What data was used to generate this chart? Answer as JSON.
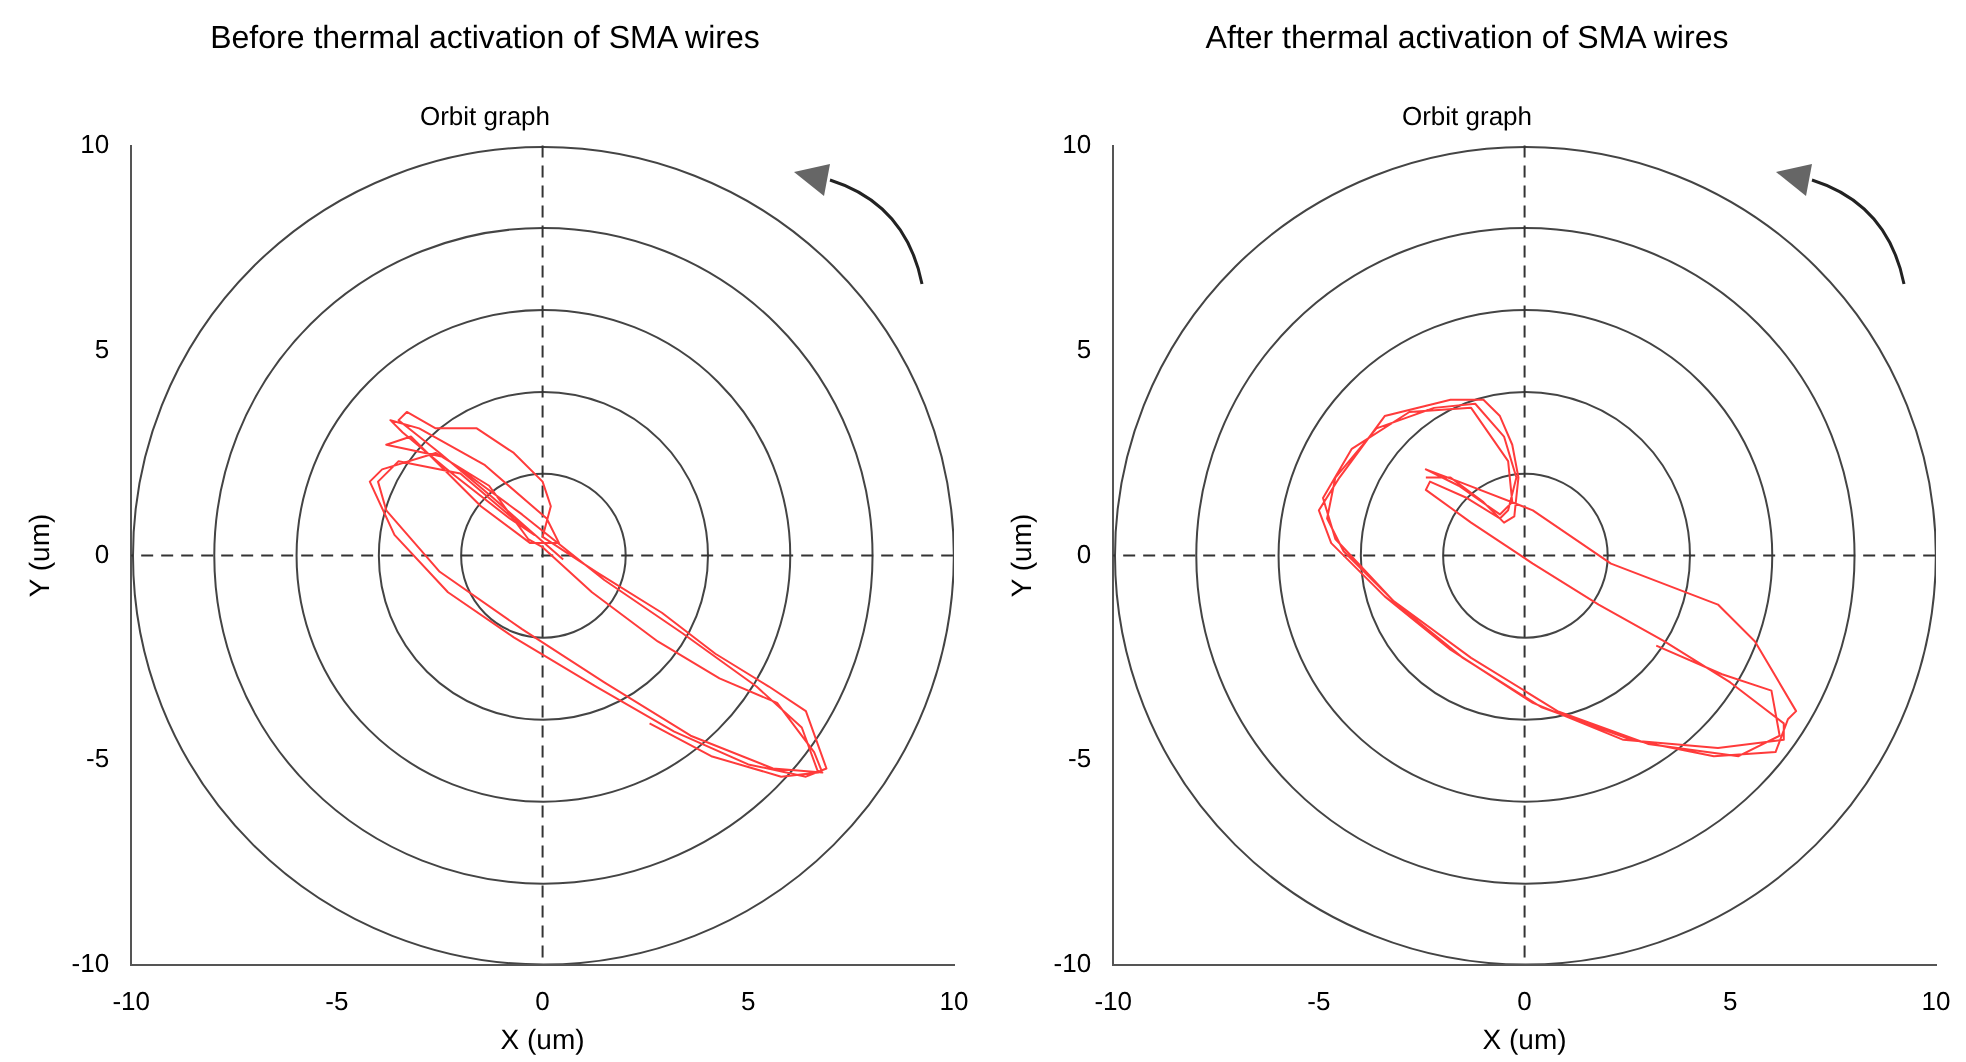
{
  "chart_data": [
    {
      "type": "line",
      "title": "Before thermal activation of SMA wires",
      "subtitle": "Orbit graph",
      "xlabel": "X (um)",
      "ylabel": "Y (um)",
      "xlim": [
        -10,
        10
      ],
      "ylim": [
        -10,
        10
      ],
      "xticks": [
        -10,
        -5,
        0,
        5,
        10
      ],
      "yticks": [
        -10,
        -5,
        0,
        5,
        10
      ],
      "marker": "none",
      "ref_lines": [
        {
          "axis": "x",
          "value": 0,
          "line_style": "dashed"
        },
        {
          "axis": "y",
          "value": 0,
          "line_style": "dashed"
        }
      ],
      "series": [
        {
          "color": "#ff3b3b",
          "x": [
            0.5,
            -0.3,
            -1.2,
            -2.5,
            -3.5,
            -3.3,
            -2.6,
            -1.6,
            -0.7,
            0,
            0.2,
            0,
            1.3,
            2.9,
            4.2,
            5.5,
            6.4,
            6.9,
            6.4,
            5,
            3.2,
            1.3,
            -0.7,
            -2.3,
            -3.6,
            -4.2,
            -3.9,
            -2.6,
            -1.3,
            -0.35,
            0,
            1.2,
            2.8,
            4.3,
            5.7,
            6.6,
            6.8,
            5.6,
            3.6,
            1.5,
            -0.5,
            -2.5,
            -3.8,
            -4,
            -3.5,
            -2,
            -0.6,
            -0.2,
            -0.8,
            -2.2,
            -3.4,
            -3.7,
            -3,
            -1.4,
            0.1,
            0.4,
            -0.3,
            -1.5,
            -3.2,
            -3.8,
            -2.4,
            -0.5,
            1.5,
            3.4,
            5.2,
            6.3,
            6.7,
            5.8,
            4.1,
            2.6
          ],
          "values": [
            -0.1,
            0.6,
            1.4,
            2.5,
            3.3,
            3.5,
            3.1,
            3.1,
            2.5,
            1.8,
            1.2,
            0.45,
            -0.4,
            -1.4,
            -2.4,
            -3.2,
            -3.8,
            -5.2,
            -5.4,
            -5.1,
            -4.3,
            -3.2,
            -2,
            -0.9,
            0.5,
            1.8,
            2.1,
            2.5,
            1.7,
            0.4,
            0.2,
            -0.9,
            -2.1,
            -3,
            -3.6,
            -4.8,
            -5.3,
            -5.2,
            -4.4,
            -3.1,
            -1.8,
            -0.4,
            1.1,
            1.8,
            2.3,
            2,
            0.8,
            0.5,
            0.9,
            2,
            3,
            3.3,
            3.1,
            2.2,
            0.9,
            0.3,
            0.3,
            1.2,
            2.9,
            2.7,
            2.4,
            1,
            -0.6,
            -1.9,
            -3.2,
            -4.2,
            -5.3,
            -5.4,
            -4.9,
            -4.1
          ]
        }
      ]
    },
    {
      "type": "line",
      "title": "After thermal activation of SMA wires",
      "subtitle": "Orbit graph",
      "xlabel": "X (um)",
      "ylabel": "Y (um)",
      "xlim": [
        -10,
        10
      ],
      "ylim": [
        -10,
        10
      ],
      "xticks": [
        -10,
        -5,
        0,
        5,
        10
      ],
      "yticks": [
        -10,
        -5,
        0,
        5,
        10
      ],
      "marker": "none",
      "ref_lines": [
        {
          "axis": "x",
          "value": 0,
          "line_style": "dashed"
        },
        {
          "axis": "y",
          "value": 0,
          "line_style": "dashed"
        }
      ],
      "series": [
        {
          "color": "#ff3b3b",
          "x": [
            -2.4,
            -1.8,
            -1,
            -0.5,
            -0.25,
            -0.15,
            -0.3,
            -0.6,
            -1,
            -1.8,
            -3.4,
            -4.5,
            -5,
            -4.7,
            -3.4,
            -1.8,
            0.2,
            2.4,
            4.7,
            6.3,
            6.3,
            5,
            3.4,
            1.8,
            0.2,
            -1.3,
            -2.4,
            -2.3,
            -1.4,
            -0.6,
            -0.4,
            -0.2,
            -0.5,
            -1.2,
            -2.2,
            -3.6,
            -4.6,
            -4.8,
            -4.4,
            -3.1,
            -1.5,
            0.4,
            2.6,
            4.6,
            6.1,
            6.4,
            6.6,
            5.6,
            4.7,
            2.1,
            0.2,
            -1.6,
            -2.4,
            -1.6,
            -0.6,
            -0.3,
            -0.4,
            -1.3,
            -2.8,
            -4.2,
            -4.9,
            -4.6,
            -3.2,
            -1.3,
            0.8,
            3,
            5.2,
            6.2,
            6,
            4.8,
            3.2
          ],
          "values": [
            1.9,
            1.9,
            1.3,
            0.8,
            0.95,
            1.9,
            2.7,
            3.4,
            3.8,
            3.8,
            3.4,
            1.9,
            1.1,
            0.3,
            -1,
            -2.3,
            -3.6,
            -4.5,
            -4.7,
            -4.5,
            -4.1,
            -3.1,
            -2.1,
            -1.2,
            -0.2,
            0.8,
            1.6,
            1.8,
            1.4,
            0.9,
            1.1,
            1.9,
            2.9,
            3.7,
            3.6,
            3.1,
            1.9,
            0.9,
            0.1,
            -1.2,
            -2.5,
            -3.7,
            -4.5,
            -4.9,
            -4.8,
            -4,
            -3.8,
            -2.1,
            -1.2,
            -0.2,
            1.1,
            1.8,
            2.1,
            1.7,
            1,
            1.3,
            2.3,
            3.6,
            3.5,
            2.6,
            1.4,
            0.4,
            -1.1,
            -2.5,
            -3.8,
            -4.6,
            -4.9,
            -4.4,
            -3.3,
            -2.9,
            -2.2
          ]
        }
      ]
    }
  ]
}
